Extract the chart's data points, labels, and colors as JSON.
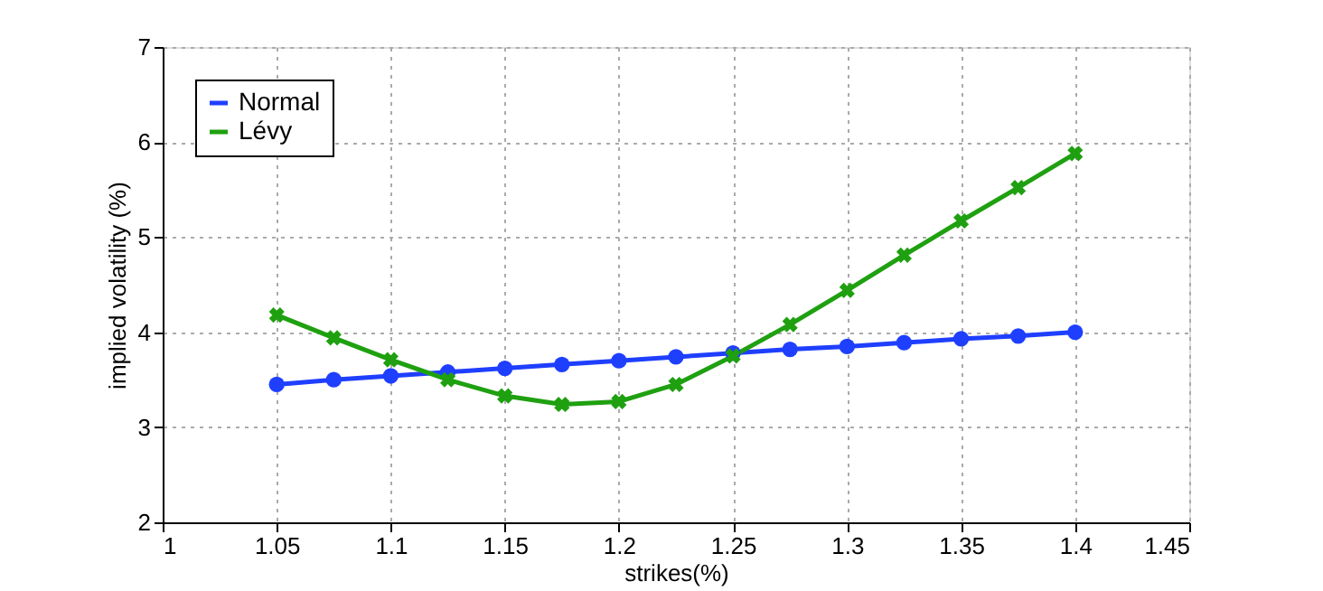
{
  "chart_data": {
    "type": "line",
    "xlabel": "strikes(%)",
    "ylabel": "implied volatility (%)",
    "x": [
      1.05,
      1.075,
      1.1,
      1.125,
      1.15,
      1.175,
      1.2,
      1.225,
      1.25,
      1.275,
      1.3,
      1.325,
      1.35,
      1.375,
      1.4
    ],
    "series": [
      {
        "name": "Normal",
        "color": "#1f3fff",
        "marker": "circle",
        "values": [
          3.45,
          3.5,
          3.54,
          3.58,
          3.62,
          3.66,
          3.7,
          3.74,
          3.78,
          3.82,
          3.85,
          3.89,
          3.93,
          3.96,
          4.0
        ]
      },
      {
        "name": "Lévy",
        "color": "#1fa010",
        "marker": "cross",
        "values": [
          4.18,
          3.94,
          3.71,
          3.5,
          3.33,
          3.24,
          3.27,
          3.45,
          3.75,
          4.08,
          4.44,
          4.81,
          5.17,
          5.52,
          5.88
        ]
      }
    ],
    "xlim": [
      1,
      1.45
    ],
    "xticks": [
      1,
      1.05,
      1.1,
      1.15,
      1.2,
      1.25,
      1.3,
      1.35,
      1.4,
      1.45
    ],
    "ylim": [
      2,
      7
    ],
    "yticks": [
      2,
      3,
      4,
      5,
      6,
      7
    ],
    "grid": true,
    "legend": "top left",
    "line_style": "solid"
  }
}
